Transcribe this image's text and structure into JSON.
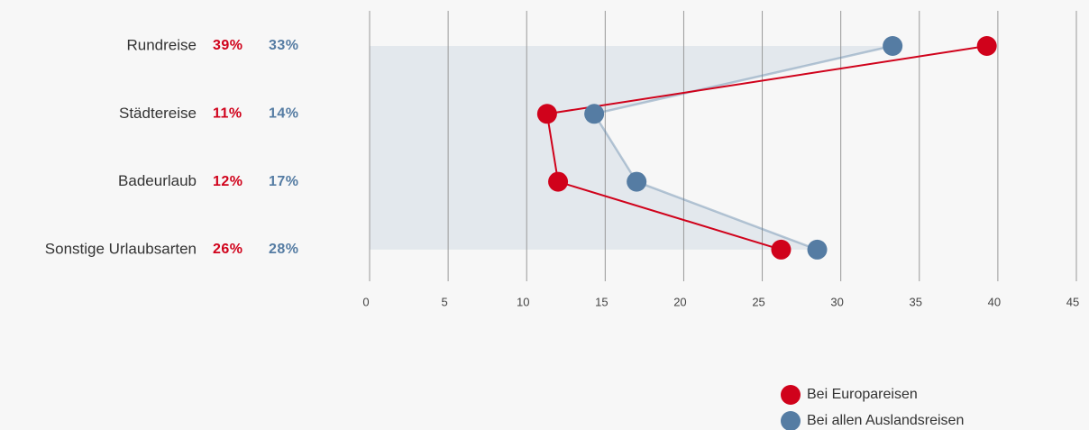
{
  "chart_data": {
    "type": "line",
    "orientation": "horizontal",
    "categories": [
      "Rundreise",
      "Städtereise",
      "Badeurlaub",
      "Sonstige Urlaubsarten"
    ],
    "series": [
      {
        "name": "Bei Europareisen",
        "color": "#d0021b",
        "values": [
          39.3,
          11.3,
          12.0,
          26.2
        ],
        "value_labels": [
          "39%",
          "11%",
          "12%",
          "26%"
        ]
      },
      {
        "name": "Bei allen Auslandsreisen",
        "color": "#557ca3",
        "values": [
          33.3,
          14.3,
          17.0,
          28.5
        ],
        "value_labels": [
          "33%",
          "14%",
          "17%",
          "28%"
        ]
      }
    ],
    "xlim": [
      0,
      45
    ],
    "xticks": [
      0,
      5,
      10,
      15,
      20,
      25,
      30,
      35,
      40,
      45
    ],
    "grid": true,
    "legend": "bottom-right"
  }
}
